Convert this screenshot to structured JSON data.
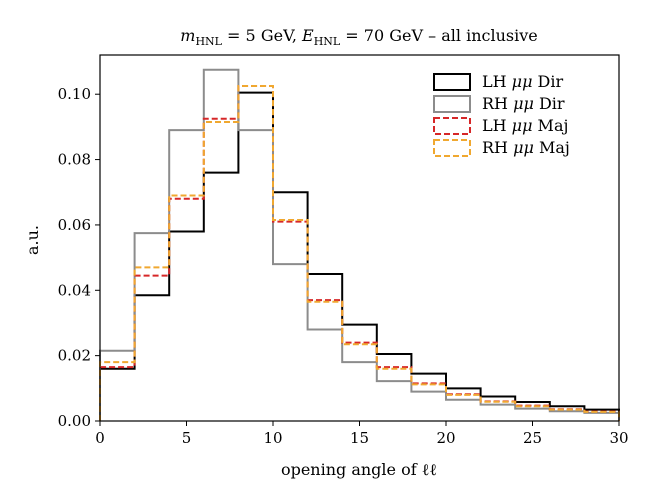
{
  "chart_data": {
    "type": "histogram-step",
    "title": "m_HNL = 5 GeV, E_HNL = 70 GeV – all inclusive",
    "title_parts": {
      "m_sym": "m",
      "m_sub": "HNL",
      "m_val": " = 5 GeV, ",
      "e_sym": "E",
      "e_sub": "HNL",
      "e_val": " = 70 GeV – all inclusive"
    },
    "xlabel": "opening angle of ℓℓ",
    "ylabel": "a.u.",
    "xlim": [
      0,
      30
    ],
    "ylim": [
      0,
      0.112
    ],
    "xticks": [
      0,
      5,
      10,
      15,
      20,
      25,
      30
    ],
    "yticks": [
      0.0,
      0.02,
      0.04,
      0.06,
      0.08,
      0.1
    ],
    "xtick_labels": [
      "0",
      "5",
      "10",
      "15",
      "20",
      "25",
      "30"
    ],
    "ytick_labels": [
      "0.00",
      "0.02",
      "0.04",
      "0.06",
      "0.08",
      "0.10"
    ],
    "bin_edges": [
      0,
      2,
      4,
      6,
      8,
      10,
      12,
      14,
      16,
      18,
      20,
      22,
      24,
      26,
      28,
      30
    ],
    "legend_position": "top-right",
    "grid": false,
    "series": [
      {
        "name": "LH μμ Dir",
        "name_parts": {
          "pre": "LH ",
          "sym": "μμ",
          "post": " Dir"
        },
        "color": "#000000",
        "dash": "solid",
        "values": [
          0.016,
          0.0385,
          0.058,
          0.076,
          0.1005,
          0.07,
          0.045,
          0.0295,
          0.0205,
          0.0145,
          0.01,
          0.0075,
          0.0058,
          0.0045,
          0.0035
        ]
      },
      {
        "name": "RH μμ Dir",
        "name_parts": {
          "pre": "RH ",
          "sym": "μμ",
          "post": " Dir"
        },
        "color": "#8c8c8c",
        "dash": "solid",
        "values": [
          0.0215,
          0.0575,
          0.089,
          0.1075,
          0.089,
          0.048,
          0.028,
          0.018,
          0.0122,
          0.009,
          0.0065,
          0.005,
          0.0038,
          0.003,
          0.0025
        ]
      },
      {
        "name": "LH μμ Maj",
        "name_parts": {
          "pre": "LH ",
          "sym": "μμ",
          "post": " Maj"
        },
        "color": "#d62728",
        "dash": "dashed",
        "values": [
          0.0165,
          0.0445,
          0.068,
          0.0925,
          0.1025,
          0.061,
          0.037,
          0.024,
          0.0165,
          0.0115,
          0.0082,
          0.006,
          0.0047,
          0.0036,
          0.0029
        ]
      },
      {
        "name": "RH μμ Maj",
        "name_parts": {
          "pre": "RH ",
          "sym": "μμ",
          "post": " Maj"
        },
        "color": "#f0a830",
        "dash": "dashed",
        "values": [
          0.018,
          0.047,
          0.069,
          0.0915,
          0.1025,
          0.0615,
          0.0365,
          0.0235,
          0.016,
          0.0112,
          0.008,
          0.0059,
          0.0045,
          0.0035,
          0.0028
        ]
      }
    ]
  }
}
